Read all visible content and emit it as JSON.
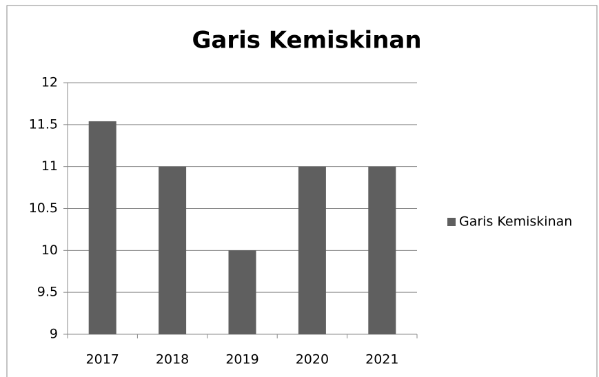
{
  "chart_data": {
    "type": "bar",
    "title": "Garis Kemiskinan",
    "categories": [
      "2017",
      "2018",
      "2019",
      "2020",
      "2021"
    ],
    "series": [
      {
        "name": "Garis Kemiskinan",
        "color": "#5f5f5f",
        "values": [
          11.54,
          11,
          10,
          11,
          11
        ]
      }
    ],
    "ylim": [
      9,
      12
    ],
    "yticks": [
      9,
      9.5,
      10,
      10.5,
      11,
      11.5,
      12
    ],
    "grid": true,
    "legend": "right"
  }
}
